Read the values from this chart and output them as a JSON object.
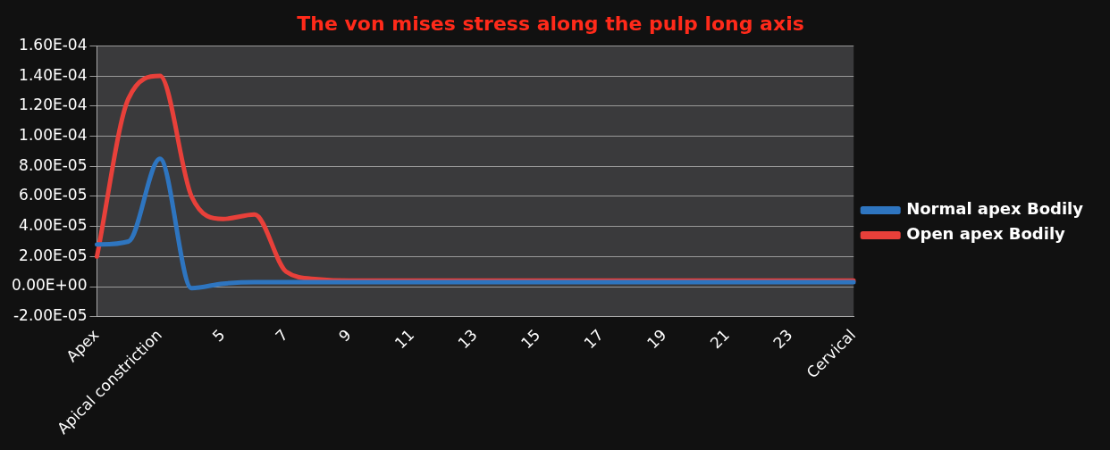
{
  "chart_data": {
    "type": "line",
    "title": "The von mises stress along the pulp long axis",
    "categories": [
      "Apex",
      null,
      "Apical constriction",
      null,
      "5",
      null,
      "7",
      null,
      "9",
      null,
      "11",
      null,
      "13",
      null,
      "15",
      null,
      "17",
      null,
      "19",
      null,
      "21",
      null,
      "23",
      null,
      "Cervical"
    ],
    "series": [
      {
        "name": "Normal apex Bodily",
        "color": "#2e75c0",
        "values": [
          2.8e-05,
          3e-05,
          8.5e-05,
          -1e-06,
          2e-06,
          3e-06,
          3e-06,
          3e-06,
          3e-06,
          3e-06,
          3e-06,
          3e-06,
          3e-06,
          3e-06,
          3e-06,
          3e-06,
          3e-06,
          3e-06,
          3e-06,
          3e-06,
          3e-06,
          3e-06,
          3e-06,
          3e-06,
          3e-06
        ]
      },
      {
        "name": "Open apex Bodily",
        "color": "#e8403a",
        "values": [
          2e-05,
          0.000125,
          0.00014,
          6e-05,
          4.5e-05,
          4.8e-05,
          1e-05,
          5e-06,
          4e-06,
          4e-06,
          4e-06,
          4e-06,
          4e-06,
          4e-06,
          4e-06,
          4e-06,
          4e-06,
          4e-06,
          4e-06,
          4e-06,
          4e-06,
          4e-06,
          4e-06,
          4e-06,
          4e-06
        ]
      }
    ],
    "ylim": [
      -2e-05,
      0.00016
    ],
    "yticks": [
      {
        "value": -2e-05,
        "label": "-2.00E-05"
      },
      {
        "value": 0,
        "label": "0.00E+00"
      },
      {
        "value": 2e-05,
        "label": "2.00E-05"
      },
      {
        "value": 4e-05,
        "label": "4.00E-05"
      },
      {
        "value": 6e-05,
        "label": "6.00E-05"
      },
      {
        "value": 8e-05,
        "label": "8.00E-05"
      },
      {
        "value": 0.0001,
        "label": "1.00E-04"
      },
      {
        "value": 0.00012,
        "label": "1.20E-04"
      },
      {
        "value": 0.00014,
        "label": "1.40E-04"
      },
      {
        "value": 0.00016,
        "label": "1.60E-04"
      }
    ],
    "grid": "y",
    "legend": "right",
    "marker": "none",
    "line_style": "solid"
  }
}
